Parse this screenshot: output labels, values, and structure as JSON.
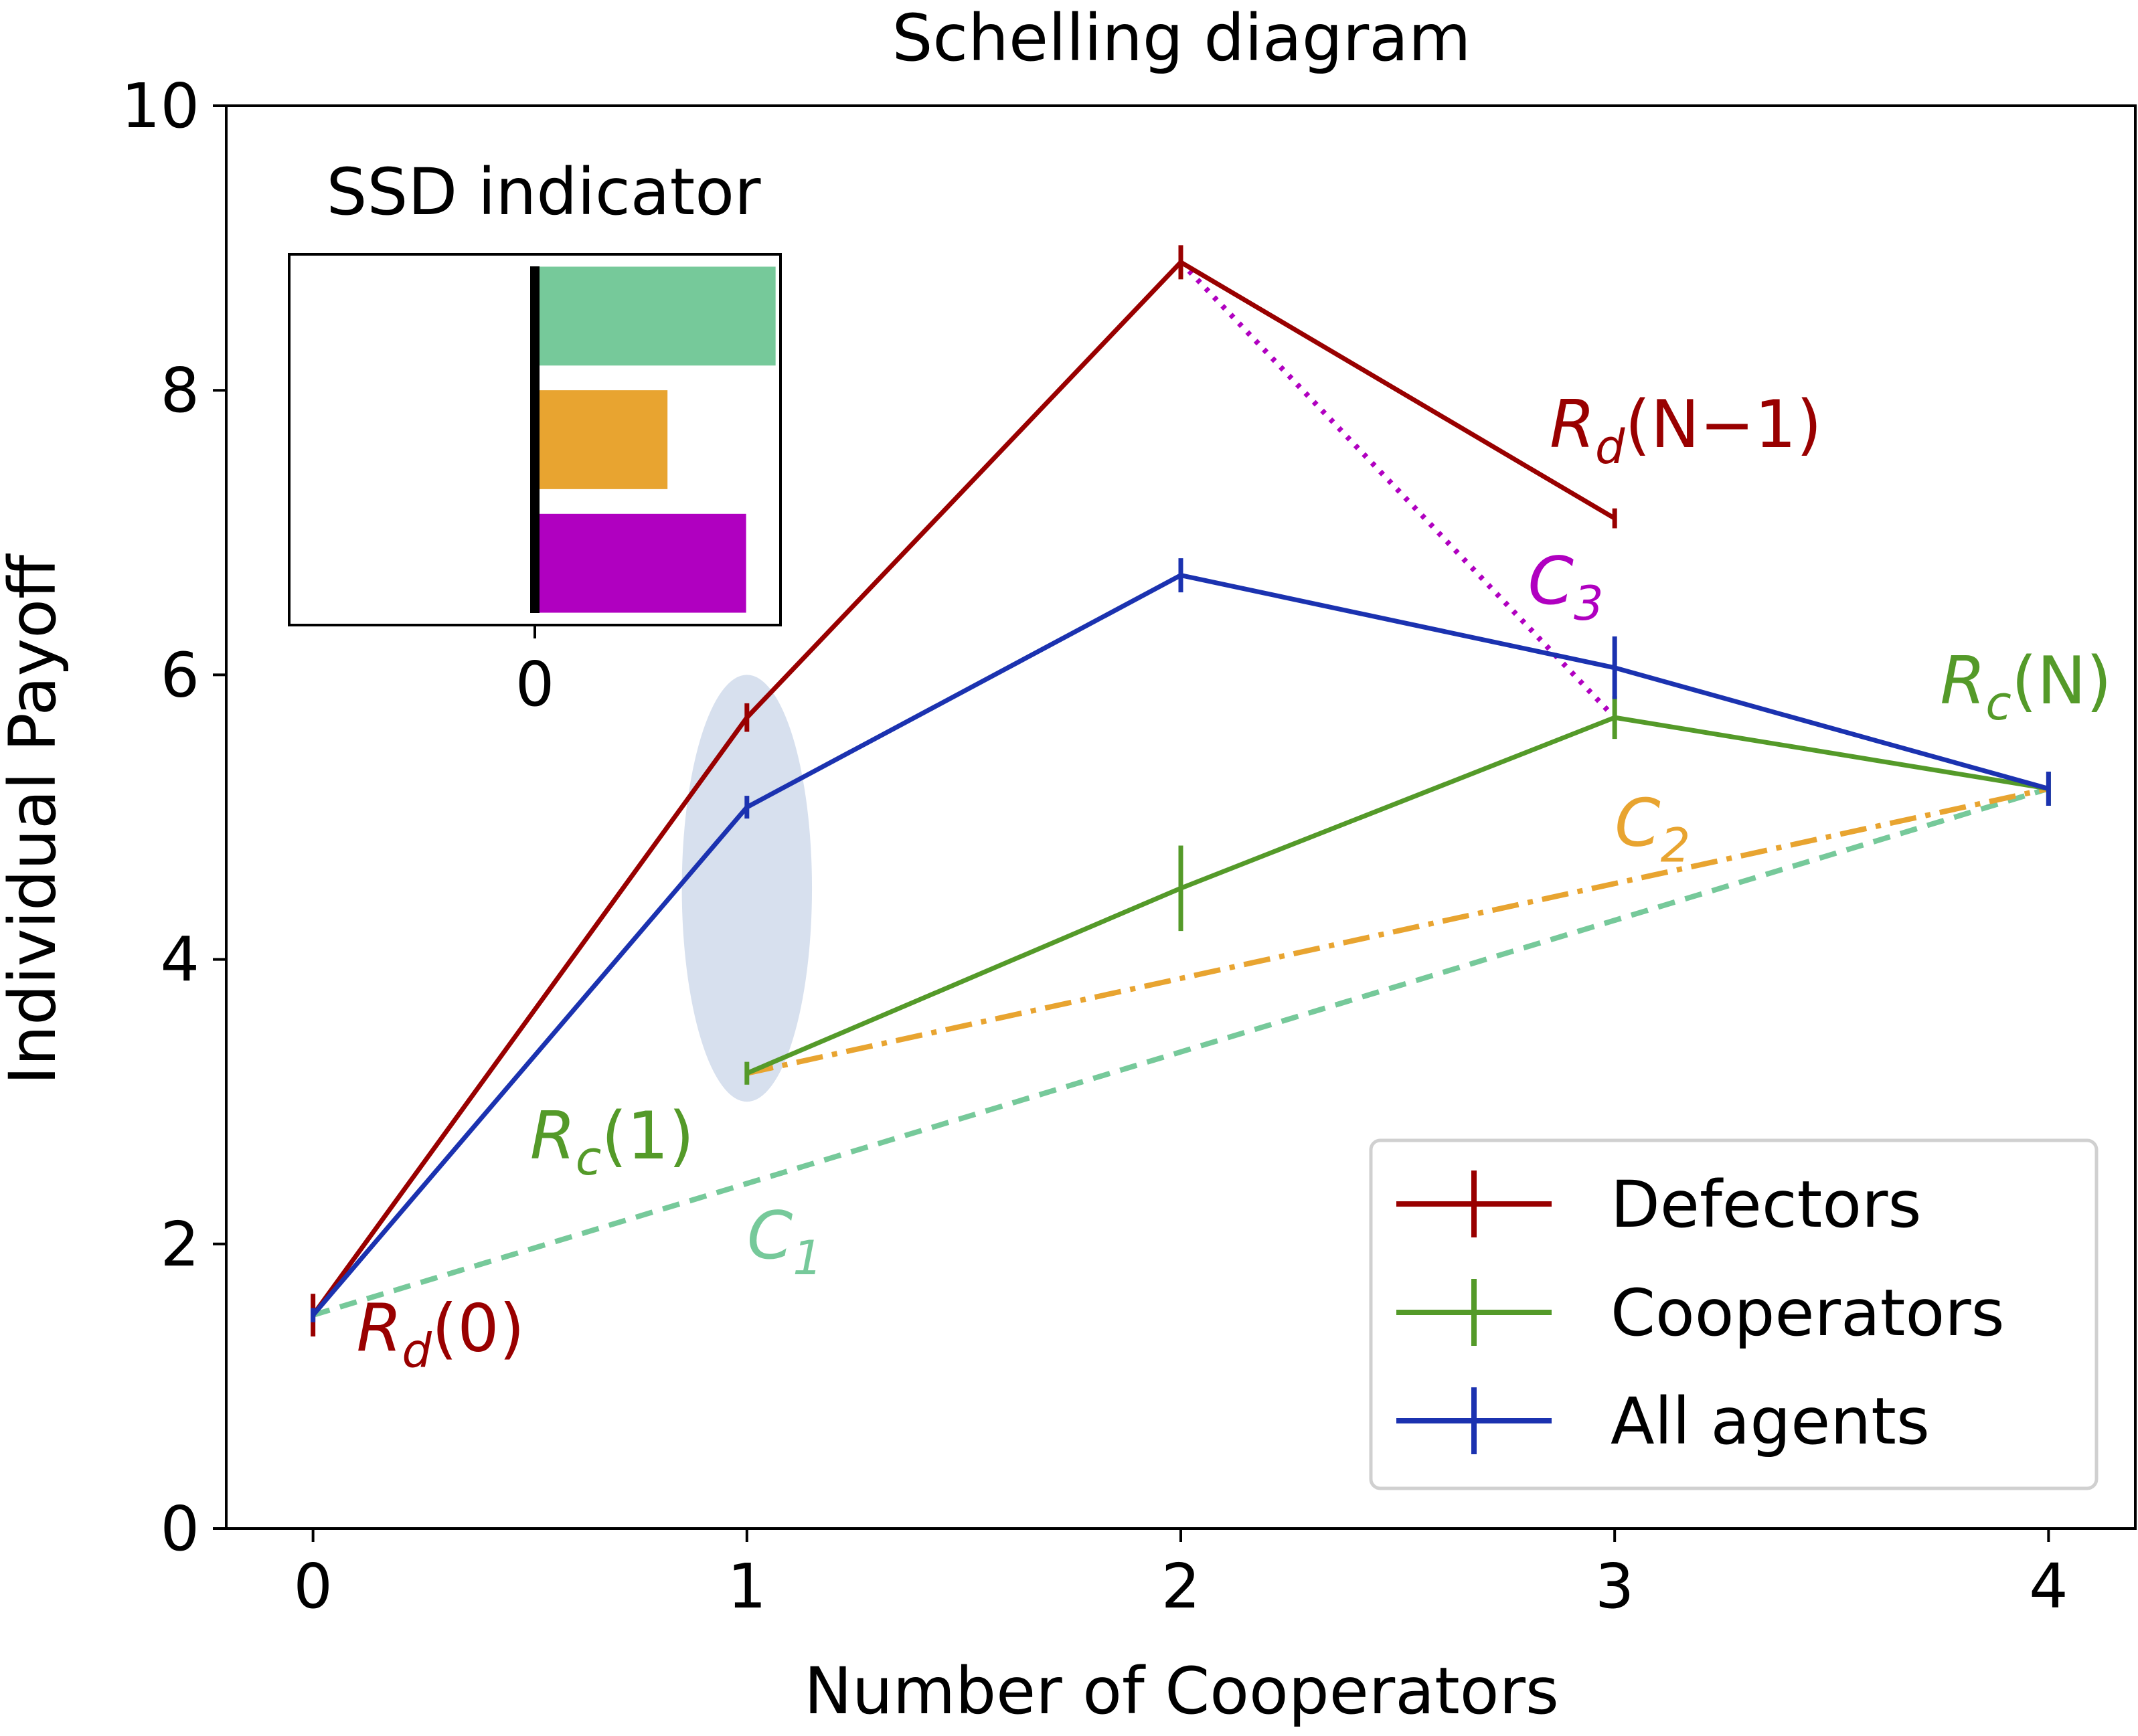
{
  "chart_data": {
    "type": "line",
    "title": "Schelling diagram",
    "xlabel": "Number of Cooperators",
    "ylabel": "Individual Payoff",
    "xlim": [
      -0.2,
      4.2
    ],
    "ylim": [
      0,
      10
    ],
    "xticks": [
      0,
      1,
      2,
      3,
      4
    ],
    "yticks": [
      0,
      2,
      4,
      6,
      8,
      10
    ],
    "xtick_labels": [
      "0",
      "1",
      "2",
      "3",
      "4"
    ],
    "ytick_labels": [
      "0",
      "2",
      "4",
      "6",
      "8",
      "10"
    ],
    "grid": false,
    "legend": {
      "position": "bottom-right"
    },
    "series": [
      {
        "name": "Defectors",
        "color": "#990000",
        "x": [
          0,
          1,
          2,
          3
        ],
        "y": [
          1.5,
          5.7,
          8.9,
          7.1
        ],
        "err": [
          0.15,
          0.1,
          0.12,
          0.07
        ]
      },
      {
        "name": "Cooperators",
        "color": "#549a29",
        "x": [
          1,
          2,
          3,
          4
        ],
        "y": [
          3.2,
          4.5,
          5.7,
          5.2
        ],
        "err": [
          0.08,
          0.3,
          0.15,
          0.12
        ]
      },
      {
        "name": "All agents",
        "color": "#1b32b0",
        "x": [
          0,
          1,
          2,
          3,
          4
        ],
        "y": [
          1.5,
          5.07,
          6.7,
          6.05,
          5.2
        ],
        "err": [
          0.05,
          0.08,
          0.12,
          0.22,
          0.12
        ]
      }
    ],
    "connectors": [
      {
        "id": "C1",
        "color": "#76c99a",
        "style": "dashed",
        "from": [
          0,
          1.5
        ],
        "to": [
          4,
          5.2
        ]
      },
      {
        "id": "C2",
        "color": "#e8a430",
        "style": "dashdot",
        "from": [
          1,
          3.2
        ],
        "to": [
          4,
          5.2
        ]
      },
      {
        "id": "C3",
        "color": "#b000c0",
        "style": "dotted",
        "from": [
          2,
          8.9
        ],
        "to": [
          3,
          5.7
        ]
      }
    ],
    "highlight_ellipse": {
      "center": [
        1,
        4.5
      ],
      "semi_x": 0.15,
      "semi_y": 1.5,
      "color": "#c9d6e8"
    },
    "annotations": [
      {
        "id": "rd0",
        "color": "#990000",
        "base": "R",
        "sub": "d",
        "tail": "(0)",
        "at": [
          0.1,
          1.25
        ]
      },
      {
        "id": "rdn1",
        "color": "#990000",
        "base": "R",
        "sub": "d",
        "tail": "(N−1)",
        "at": [
          2.85,
          7.6
        ]
      },
      {
        "id": "rc1",
        "color": "#549a29",
        "base": "R",
        "sub": "c",
        "tail": "(1)",
        "at": [
          0.5,
          2.6
        ]
      },
      {
        "id": "rcn",
        "color": "#549a29",
        "base": "R",
        "sub": "c",
        "tail": "(N)",
        "at": [
          3.75,
          5.8
        ]
      },
      {
        "id": "c1",
        "color": "#76c99a",
        "base": "C",
        "sub": "1",
        "tail": "",
        "at": [
          1.0,
          1.9
        ]
      },
      {
        "id": "c2",
        "color": "#e8a430",
        "base": "C",
        "sub": "2",
        "tail": "",
        "at": [
          3.0,
          4.8
        ]
      },
      {
        "id": "c3",
        "color": "#b000c0",
        "base": "C",
        "sub": "3",
        "tail": "",
        "at": [
          2.8,
          6.5
        ]
      }
    ],
    "inset": {
      "type": "bar",
      "orientation": "horizontal",
      "title": "SSD indicator",
      "xtick_labels": [
        "0"
      ],
      "xlim": [
        -1.0,
        1.0
      ],
      "bars": [
        {
          "connector": "C1",
          "value": 0.98,
          "color": "#76c99a"
        },
        {
          "connector": "C2",
          "value": 0.54,
          "color": "#e8a430"
        },
        {
          "connector": "C3",
          "value": 0.86,
          "color": "#b000c0"
        }
      ]
    }
  }
}
